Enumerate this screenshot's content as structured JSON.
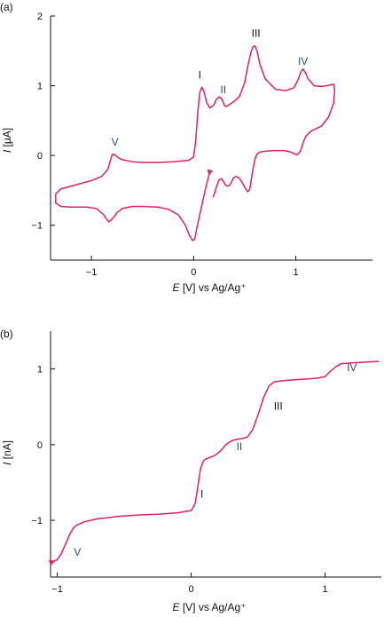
{
  "colors": {
    "curve": "#e0206a",
    "axis": "#111111",
    "label_dark": "#111111",
    "label_blue": "#2a4a9a"
  },
  "chart_data": [
    {
      "type": "line",
      "panel_label": "(a)",
      "xlabel_italic": "E",
      "xlabel_rest": " [V] vs Ag/Ag⁺",
      "ylabel_italic": "I",
      "ylabel_rest": " [μA]",
      "xlim": [
        -1.4,
        1.75
      ],
      "ylim": [
        -1.5,
        2.0
      ],
      "xticks": [
        -1,
        0,
        1
      ],
      "xtick_labels": [
        "−1",
        "0",
        "1"
      ],
      "yticks": [
        -1,
        0,
        1,
        2
      ],
      "ytick_labels": [
        "−1",
        "0",
        "1",
        "2"
      ],
      "series": [
        {
          "x": [
            0.16,
            0.15,
            0.12,
            0.09,
            0.06,
            0.03,
            0.01,
            -0.01,
            -0.04,
            -0.08,
            -0.15,
            -0.25,
            -0.35,
            -0.5,
            -0.6,
            -0.7,
            -0.75,
            -0.78,
            -0.81,
            -0.83,
            -0.85,
            -0.88,
            -0.95,
            -1.05,
            -1.2,
            -1.3,
            -1.35,
            -1.35,
            -1.3,
            -1.15,
            -1.0,
            -0.9,
            -0.84,
            -0.82,
            -0.8,
            -0.79,
            -0.77,
            -0.74,
            -0.7,
            -0.6,
            -0.5,
            -0.35,
            -0.2,
            -0.05,
            0.0,
            0.02,
            0.04,
            0.06,
            0.08,
            0.1,
            0.13,
            0.16,
            0.2,
            0.22,
            0.25,
            0.28,
            0.3,
            0.32,
            0.35,
            0.4,
            0.45,
            0.5,
            0.53,
            0.56,
            0.58,
            0.6,
            0.62,
            0.65,
            0.7,
            0.8,
            0.9,
            0.98,
            1.02,
            1.05,
            1.07,
            1.09,
            1.12,
            1.18,
            1.25,
            1.3,
            1.37,
            1.38,
            1.37,
            1.32,
            1.25,
            1.15,
            1.1,
            1.07,
            1.05,
            1.03,
            1.01,
            0.99,
            0.95,
            0.88,
            0.78,
            0.7,
            0.65,
            0.62,
            0.6,
            0.58,
            0.56,
            0.55,
            0.53,
            0.51,
            0.48,
            0.45,
            0.42,
            0.39,
            0.37,
            0.35,
            0.33,
            0.31,
            0.29,
            0.27,
            0.25,
            0.23,
            0.21,
            0.19
          ],
          "y": [
            -0.22,
            -0.28,
            -0.45,
            -0.65,
            -0.85,
            -1.05,
            -1.2,
            -1.22,
            -1.15,
            -1.0,
            -0.85,
            -0.77,
            -0.74,
            -0.73,
            -0.73,
            -0.76,
            -0.82,
            -0.88,
            -0.93,
            -0.95,
            -0.92,
            -0.85,
            -0.76,
            -0.74,
            -0.74,
            -0.73,
            -0.68,
            -0.55,
            -0.48,
            -0.42,
            -0.36,
            -0.3,
            -0.2,
            -0.1,
            0.0,
            0.02,
            0.01,
            -0.03,
            -0.06,
            -0.09,
            -0.1,
            -0.1,
            -0.09,
            -0.07,
            -0.02,
            0.2,
            0.6,
            0.9,
            0.98,
            0.92,
            0.75,
            0.68,
            0.73,
            0.8,
            0.84,
            0.8,
            0.72,
            0.7,
            0.73,
            0.78,
            0.85,
            1.05,
            1.28,
            1.48,
            1.56,
            1.57,
            1.5,
            1.3,
            1.1,
            0.95,
            0.93,
            0.97,
            1.08,
            1.2,
            1.24,
            1.2,
            1.1,
            1.0,
            0.99,
            1.0,
            1.02,
            0.93,
            0.75,
            0.55,
            0.42,
            0.35,
            0.28,
            0.18,
            0.08,
            0.03,
            0.01,
            0.02,
            0.05,
            0.07,
            0.07,
            0.06,
            0.05,
            0.02,
            -0.05,
            -0.2,
            -0.38,
            -0.48,
            -0.52,
            -0.48,
            -0.4,
            -0.33,
            -0.3,
            -0.32,
            -0.38,
            -0.43,
            -0.44,
            -0.42,
            -0.37,
            -0.33,
            -0.35,
            -0.42,
            -0.52,
            -0.6
          ]
        }
      ],
      "annotations": [
        {
          "text": "I",
          "x": 0.06,
          "y": 1.1,
          "color": "dark"
        },
        {
          "text": "II",
          "x": 0.29,
          "y": 0.89,
          "color": "blue"
        },
        {
          "text": "III",
          "x": 0.61,
          "y": 1.7,
          "color": "dark"
        },
        {
          "text": "IV",
          "x": 1.07,
          "y": 1.3,
          "color": "blue"
        },
        {
          "text": "V",
          "x": -0.77,
          "y": 0.14,
          "color": "blue"
        }
      ]
    },
    {
      "type": "line",
      "panel_label": "(b)",
      "xlabel_italic": "E",
      "xlabel_rest": " [V] vs Ag/Ag⁺",
      "ylabel_italic": "I",
      "ylabel_rest": " [nA]",
      "xlim": [
        -1.05,
        1.42
      ],
      "ylim": [
        -1.75,
        1.5
      ],
      "xticks": [
        -1,
        0,
        1
      ],
      "xtick_labels": [
        "−1",
        "0",
        "1"
      ],
      "yticks": [
        -1,
        0,
        1
      ],
      "ytick_labels": [
        "−1",
        "0",
        "1"
      ],
      "series": [
        {
          "x": [
            -1.05,
            -1.0,
            -0.97,
            -0.94,
            -0.91,
            -0.88,
            -0.85,
            -0.8,
            -0.7,
            -0.55,
            -0.4,
            -0.25,
            -0.1,
            0.0,
            0.03,
            0.05,
            0.07,
            0.09,
            0.11,
            0.14,
            0.18,
            0.22,
            0.26,
            0.3,
            0.34,
            0.38,
            0.42,
            0.46,
            0.5,
            0.54,
            0.58,
            0.62,
            0.66,
            0.72,
            0.8,
            0.88,
            0.95,
            1.0,
            1.04,
            1.08,
            1.12,
            1.2,
            1.3,
            1.4
          ],
          "y": [
            -1.56,
            -1.52,
            -1.44,
            -1.32,
            -1.2,
            -1.1,
            -1.06,
            -1.02,
            -0.98,
            -0.95,
            -0.93,
            -0.92,
            -0.9,
            -0.87,
            -0.78,
            -0.55,
            -0.32,
            -0.22,
            -0.19,
            -0.17,
            -0.14,
            -0.08,
            0.0,
            0.05,
            0.07,
            0.08,
            0.1,
            0.2,
            0.4,
            0.62,
            0.77,
            0.83,
            0.84,
            0.85,
            0.86,
            0.87,
            0.88,
            0.9,
            0.97,
            1.03,
            1.07,
            1.08,
            1.09,
            1.1
          ]
        }
      ],
      "annotations": [
        {
          "text": "I",
          "x": 0.08,
          "y": -0.7,
          "color": "dark"
        },
        {
          "text": "II",
          "x": 0.36,
          "y": -0.07,
          "color": "blue"
        },
        {
          "text": "III",
          "x": 0.65,
          "y": 0.46,
          "color": "dark"
        },
        {
          "text": "IV",
          "x": 1.2,
          "y": 0.97,
          "color": "blue"
        },
        {
          "text": "V",
          "x": -0.85,
          "y": -1.47,
          "color": "blue"
        }
      ]
    }
  ]
}
